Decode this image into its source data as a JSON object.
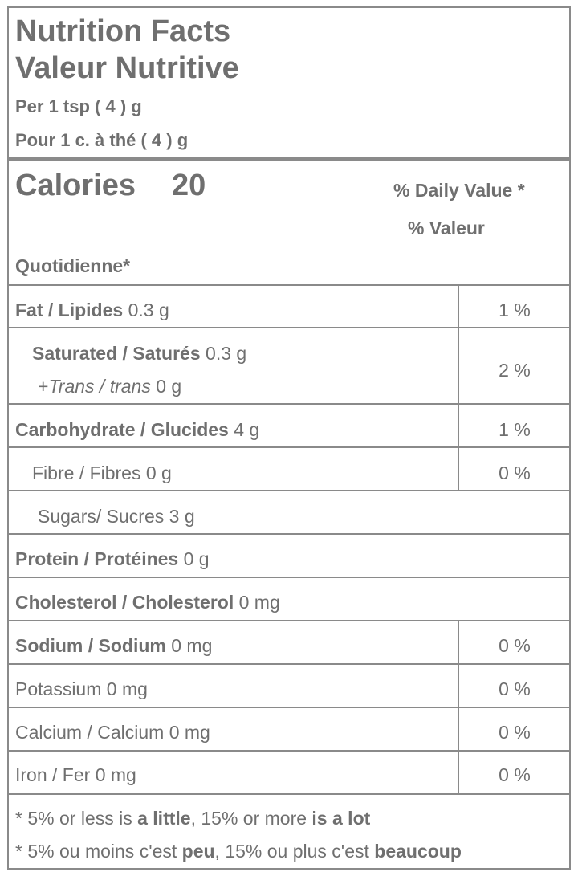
{
  "header": {
    "title_en": "Nutrition Facts",
    "title_fr": "Valeur Nutritive",
    "serving_en": "Per 1 tsp ( 4 ) g",
    "serving_fr": "Pour 1 c. à thé ( 4 ) g"
  },
  "calories": {
    "label": "Calories",
    "value": "20",
    "dv_line1": "% Daily Value *",
    "dv_line2": "% Valeur",
    "dv_line3": "Quotidienne*"
  },
  "nutrients": {
    "fat": {
      "label": "Fat / Lipides",
      "amount": "0.3 g",
      "dv": "1 %"
    },
    "saturated": {
      "label": "Saturated / Saturés",
      "amount": "0.3 g",
      "dv": "2 %"
    },
    "trans": {
      "plus": "+",
      "label": "Trans / trans",
      "amount": "0 g"
    },
    "carbs": {
      "label": "Carbohydrate / Glucides",
      "amount": "4 g",
      "dv": "1 %"
    },
    "fibre": {
      "label": "Fibre / Fibres",
      "amount": "0 g",
      "dv": "0 %"
    },
    "sugars": {
      "label": "Sugars/ Sucres",
      "amount": "3 g"
    },
    "protein": {
      "label": "Protein / Protéines",
      "amount": "0 g"
    },
    "cholesterol": {
      "label": "Cholesterol / Cholesterol",
      "amount": "0 mg"
    },
    "sodium": {
      "label": "Sodium / Sodium",
      "amount": "0 mg",
      "dv": "0 %"
    },
    "potassium": {
      "label": "Potassium",
      "amount": "0 mg",
      "dv": "0 %"
    },
    "calcium": {
      "label": "Calcium / Calcium",
      "amount": "0 mg",
      "dv": "0 %"
    },
    "iron": {
      "label": "Iron / Fer",
      "amount": "0 mg",
      "dv": "0 %"
    }
  },
  "footnote": {
    "en_a": "* 5% or less is ",
    "en_b": "a little",
    "en_c": ", 15% or more ",
    "en_d": "is a lot",
    "fr_a": "* 5% ou moins c'est ",
    "fr_b": "peu",
    "fr_c": ", 15% ou plus c'est ",
    "fr_d": "beaucoup"
  },
  "colors": {
    "text": "#6f6f6f",
    "border": "#8a8a8a",
    "background": "#ffffff"
  }
}
